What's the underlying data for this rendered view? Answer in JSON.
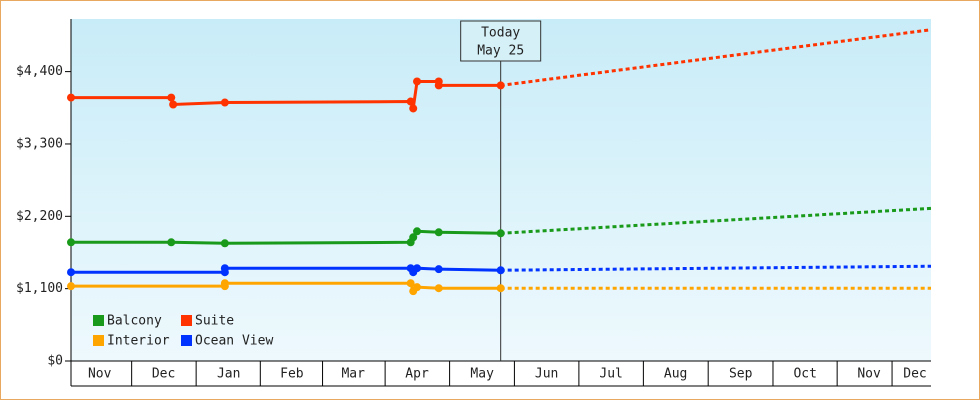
{
  "chart_data": {
    "type": "line",
    "xlim": [
      0,
      13.47
    ],
    "ylim": [
      0,
      5200
    ],
    "yticks": [
      {
        "value": 0,
        "label": "$0"
      },
      {
        "value": 1100,
        "label": "$1,100"
      },
      {
        "value": 2200,
        "label": "$2,200"
      },
      {
        "value": 3300,
        "label": "$3,300"
      },
      {
        "value": 4400,
        "label": "$4,400"
      }
    ],
    "xticks": [
      {
        "value": 0.45,
        "label": "Nov"
      },
      {
        "value": 1.45,
        "label": "Dec"
      },
      {
        "value": 2.47,
        "label": "Jan"
      },
      {
        "value": 3.46,
        "label": "Feb"
      },
      {
        "value": 4.42,
        "label": "Mar"
      },
      {
        "value": 5.42,
        "label": "Apr"
      },
      {
        "value": 6.44,
        "label": "May"
      },
      {
        "value": 7.45,
        "label": "Jun"
      },
      {
        "value": 8.46,
        "label": "Jul"
      },
      {
        "value": 9.47,
        "label": "Aug"
      },
      {
        "value": 10.49,
        "label": "Sep"
      },
      {
        "value": 11.5,
        "label": "Oct"
      },
      {
        "value": 12.5,
        "label": "Nov"
      },
      {
        "value": 13.22,
        "label": "Dec"
      }
    ],
    "annotation": {
      "x": 6.73,
      "lines": [
        "Today",
        "May 25"
      ]
    },
    "series": [
      {
        "name": "Balcony",
        "color": "#1a9a1a",
        "x": [
          0,
          1.57,
          2.41,
          5.32,
          5.36,
          5.42,
          5.76,
          6.73
        ],
        "values": [
          1805,
          1805,
          1790,
          1805,
          1881,
          1972,
          1957,
          1942
        ],
        "projection": {
          "x": [
            6.73,
            13.47
          ],
          "values": [
            1942,
            2321
          ]
        }
      },
      {
        "name": "Suite",
        "color": "#ff3300",
        "x": [
          0,
          1.57,
          1.6,
          2.41,
          5.32,
          5.36,
          5.42,
          5.76,
          5.76,
          6.73
        ],
        "values": [
          4005,
          4005,
          3900,
          3930,
          3945,
          3840,
          4250,
          4250,
          4190,
          4190
        ],
        "projection": {
          "x": [
            6.73,
            13.47
          ],
          "values": [
            4190,
            5037
          ]
        }
      },
      {
        "name": "Interior",
        "color": "#ffa500",
        "x": [
          0,
          2.41,
          2.41,
          5.32,
          5.36,
          5.42,
          5.76,
          6.73
        ],
        "values": [
          1138,
          1138,
          1183,
          1183,
          1062,
          1123,
          1107,
          1107
        ],
        "projection": {
          "x": [
            6.73,
            13.47
          ],
          "values": [
            1107,
            1107
          ]
        }
      },
      {
        "name": "Ocean View",
        "color": "#0033ff",
        "x": [
          0,
          2.41,
          2.41,
          5.32,
          5.36,
          5.42,
          5.76,
          6.73
        ],
        "values": [
          1350,
          1350,
          1411,
          1411,
          1350,
          1411,
          1396,
          1380
        ],
        "projection": {
          "x": [
            6.73,
            13.47
          ],
          "values": [
            1380,
            1441
          ]
        }
      }
    ]
  }
}
